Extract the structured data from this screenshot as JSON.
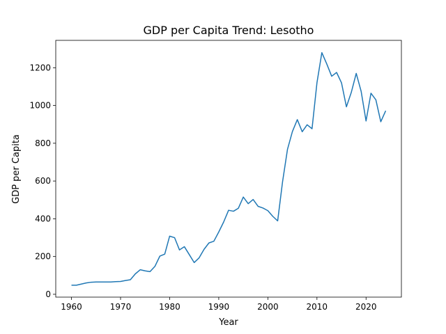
{
  "chart_data": {
    "type": "line",
    "title": "GDP per Capita Trend: Lesotho",
    "xlabel": "Year",
    "ylabel": "GDP per Capita",
    "xlim": [
      1956.8,
      2027.2
    ],
    "ylim": [
      -15,
      1345
    ],
    "x_ticks": [
      1960,
      1970,
      1980,
      1990,
      2000,
      2010,
      2020
    ],
    "y_ticks": [
      0,
      200,
      400,
      600,
      800,
      1000,
      1200
    ],
    "grid": false,
    "line_color": "#1f77b4",
    "x": [
      1960,
      1961,
      1962,
      1963,
      1964,
      1965,
      1966,
      1967,
      1968,
      1969,
      1970,
      1971,
      1972,
      1973,
      1974,
      1975,
      1976,
      1977,
      1978,
      1979,
      1980,
      1981,
      1982,
      1983,
      1984,
      1985,
      1986,
      1987,
      1988,
      1989,
      1990,
      1991,
      1992,
      1993,
      1994,
      1995,
      1996,
      1997,
      1998,
      1999,
      2000,
      2001,
      2002,
      2003,
      2004,
      2005,
      2006,
      2007,
      2008,
      2009,
      2010,
      2011,
      2012,
      2013,
      2014,
      2015,
      2016,
      2017,
      2018,
      2019,
      2020,
      2021,
      2022,
      2023,
      2024
    ],
    "y": [
      48,
      48,
      54,
      60,
      64,
      65,
      65,
      65,
      65,
      67,
      68,
      73,
      77,
      108,
      130,
      124,
      120,
      148,
      202,
      213,
      308,
      300,
      235,
      252,
      210,
      168,
      193,
      238,
      272,
      281,
      330,
      383,
      445,
      440,
      456,
      515,
      480,
      502,
      466,
      457,
      443,
      413,
      389,
      597,
      768,
      862,
      925,
      861,
      898,
      877,
      1120,
      1280,
      1220,
      1155,
      1175,
      1120,
      993,
      1070,
      1170,
      1075,
      918,
      1065,
      1030,
      914,
      972
    ]
  }
}
